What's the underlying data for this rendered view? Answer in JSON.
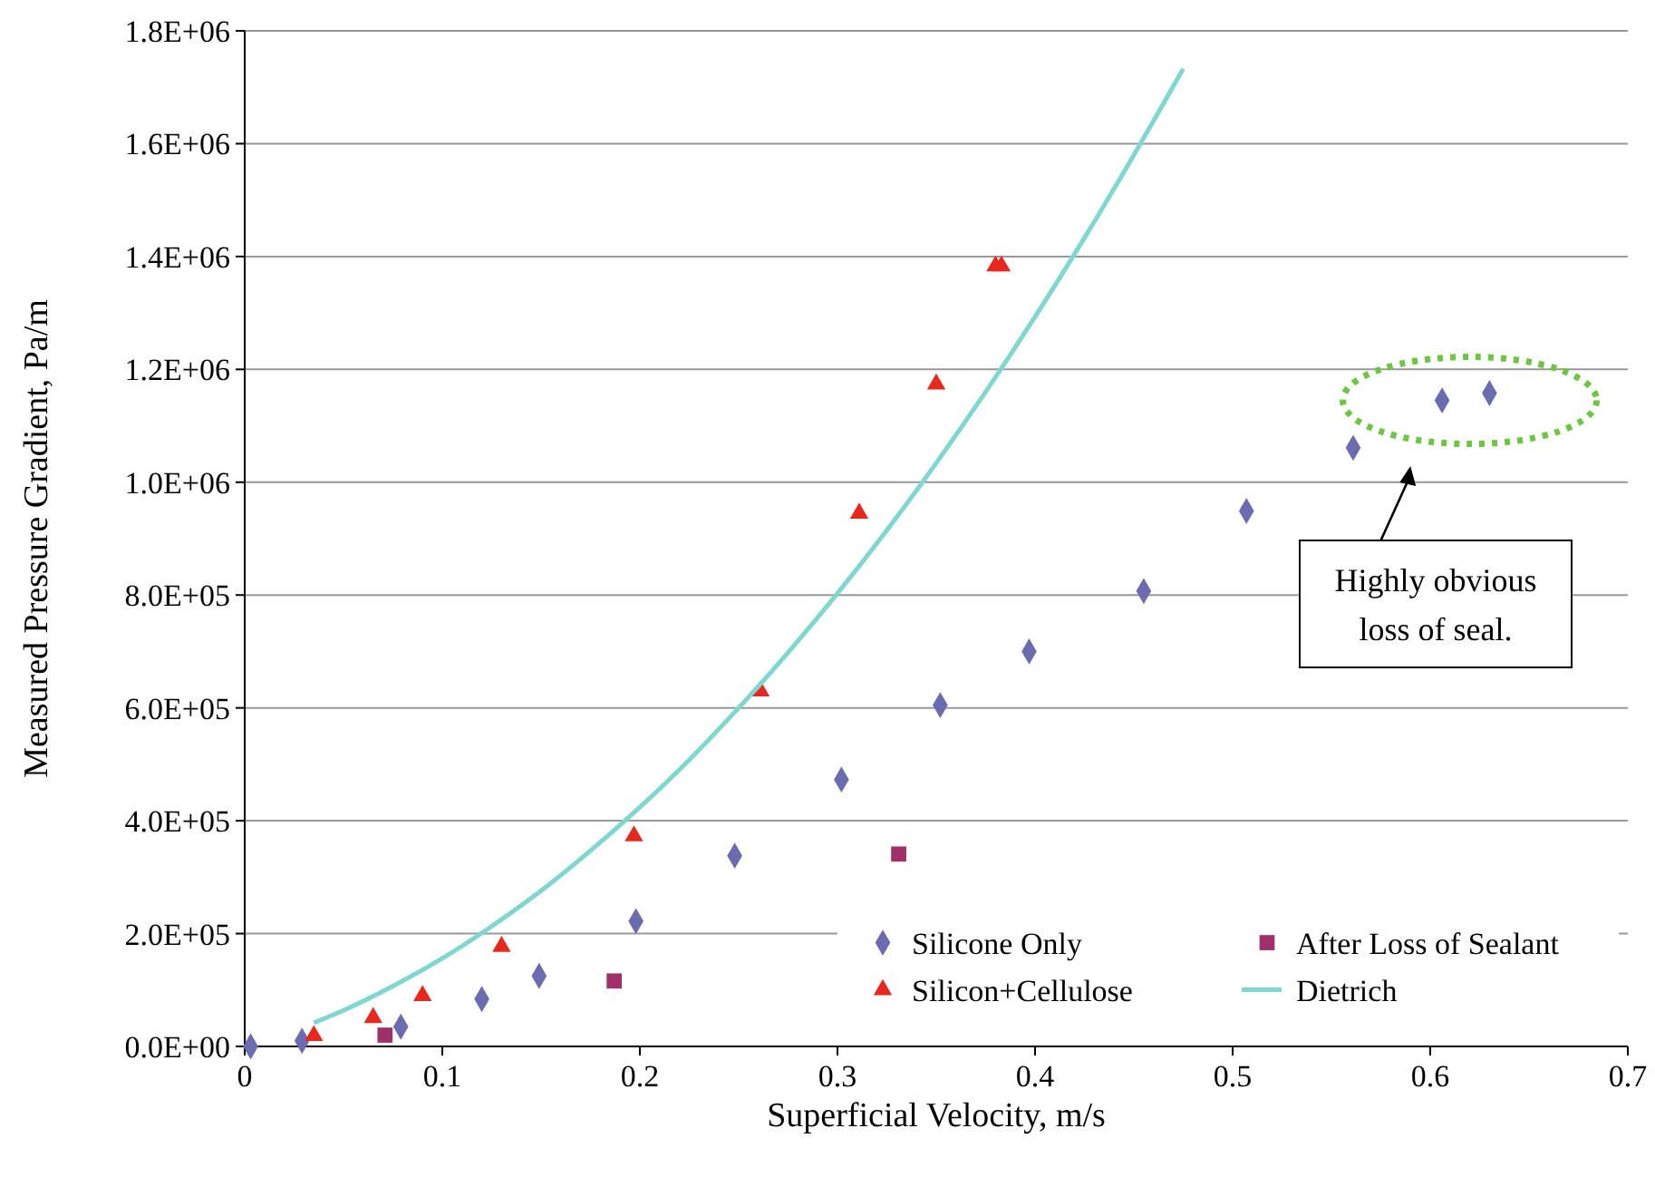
{
  "chart_data": {
    "type": "scatter",
    "xlabel": "Superficial Velocity, m/s",
    "ylabel": "Measured Pressure Gradient, Pa/m",
    "xlim": [
      0,
      0.7
    ],
    "xticks": [
      0,
      0.1,
      0.2,
      0.3,
      0.4,
      0.5,
      0.6,
      0.7
    ],
    "ylim": [
      0,
      1800000
    ],
    "yticks": [
      {
        "value": 0,
        "label": "0.0E+00"
      },
      {
        "value": 200000,
        "label": "2.0E+05"
      },
      {
        "value": 400000,
        "label": "4.0E+05"
      },
      {
        "value": 600000,
        "label": "6.0E+05"
      },
      {
        "value": 800000,
        "label": "8.0E+05"
      },
      {
        "value": 1000000,
        "label": "1.0E+06"
      },
      {
        "value": 1200000,
        "label": "1.2E+06"
      },
      {
        "value": 1400000,
        "label": "1.4E+06"
      },
      {
        "value": 1600000,
        "label": "1.6E+06"
      },
      {
        "value": 1800000,
        "label": "1.8E+06"
      }
    ],
    "grid": "y",
    "legend": "bottom right",
    "series": [
      {
        "name": "Silicone Only",
        "marker": "diamond",
        "color": "#6b6bb0",
        "x": [
          0.003,
          0.029,
          0.079,
          0.12,
          0.149,
          0.198,
          0.248,
          0.302,
          0.352,
          0.397,
          0.455,
          0.507,
          0.561,
          0.606,
          0.63
        ],
        "values": [
          0,
          10000,
          35000,
          84000,
          125000,
          222000,
          338000,
          473000,
          605000,
          700000,
          807000,
          949000,
          1061000,
          1145000,
          1158000
        ]
      },
      {
        "name": "After Loss of Sealant",
        "marker": "square",
        "color": "#a0306a",
        "x": [
          0.071,
          0.187,
          0.331
        ],
        "values": [
          20000,
          116000,
          341000
        ]
      },
      {
        "name": "Silicon+Cellulose",
        "marker": "triangle",
        "color": "#e8281c",
        "x": [
          0.035,
          0.065,
          0.09,
          0.13,
          0.197,
          0.261,
          0.311,
          0.35,
          0.38,
          0.383
        ],
        "values": [
          19000,
          51000,
          90000,
          177000,
          373000,
          630000,
          945000,
          1174000,
          1383000,
          1383000
        ]
      },
      {
        "name": "Dietrich",
        "type": "line",
        "marker": "none",
        "color": "#7fd8d0",
        "x": [
          0.035,
          0.05,
          0.075,
          0.1,
          0.125,
          0.15,
          0.175,
          0.2,
          0.225,
          0.25,
          0.275,
          0.3,
          0.325,
          0.35,
          0.375,
          0.4,
          0.425,
          0.45,
          0.475
        ],
        "values": [
          42000,
          64000,
          107000,
          156000,
          213000,
          276000,
          347000,
          424000,
          508000,
          600000,
          698000,
          803000,
          915000,
          1034000,
          1160000,
          1293000,
          1433000,
          1580000,
          1733000
        ]
      }
    ],
    "annotations": [
      "Highly obvious loss of seal."
    ]
  }
}
